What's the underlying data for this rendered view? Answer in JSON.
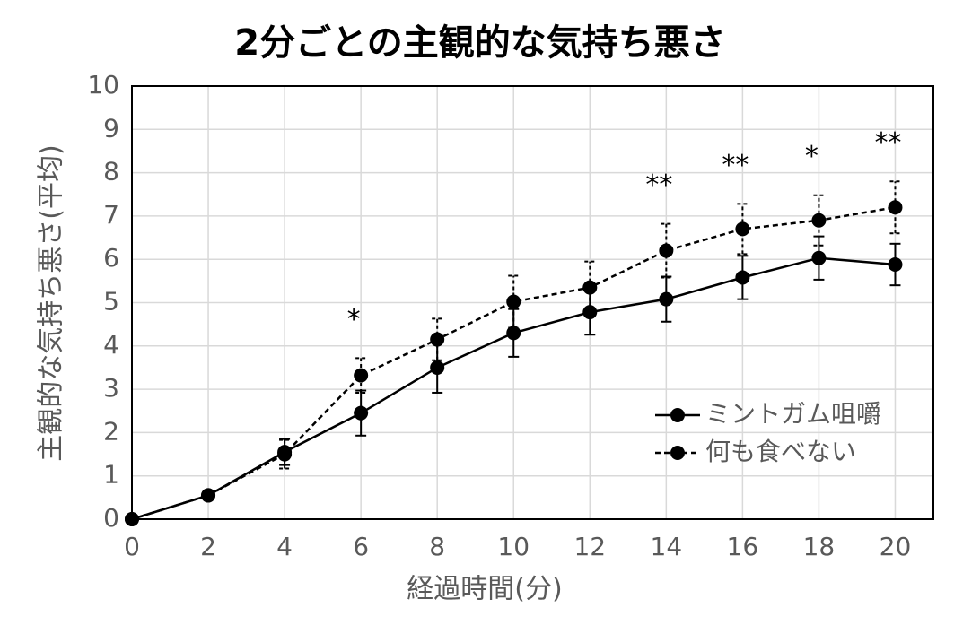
{
  "chart_data": {
    "type": "line",
    "title": "2分ごとの主観的な気持ち悪さ",
    "x_label": "経過時間(分)",
    "y_label": "主観的な気持ち悪さ(平均)",
    "x": [
      0,
      2,
      4,
      6,
      8,
      10,
      12,
      14,
      16,
      18,
      20
    ],
    "series": [
      {
        "name": "ミントガム咀嚼",
        "color": "#000000",
        "dash": false,
        "values": [
          0,
          0.55,
          1.55,
          2.45,
          3.5,
          4.3,
          4.78,
          5.08,
          5.58,
          6.03,
          5.88
        ],
        "errors": [
          0,
          0,
          0.3,
          0.52,
          0.58,
          0.55,
          0.52,
          0.52,
          0.5,
          0.5,
          0.48
        ]
      },
      {
        "name": "何も食べない",
        "color": "#000000",
        "dash": true,
        "values": [
          0,
          0.55,
          1.5,
          3.32,
          4.15,
          5.02,
          5.35,
          6.2,
          6.7,
          6.9,
          7.2
        ],
        "errors": [
          0,
          0,
          0.33,
          0.4,
          0.48,
          0.6,
          0.6,
          0.62,
          0.58,
          0.58,
          0.6
        ]
      }
    ],
    "annotations": [
      {
        "x": 6,
        "text": "*"
      },
      {
        "x": 14,
        "text": "**"
      },
      {
        "x": 16,
        "text": "**"
      },
      {
        "x": 18,
        "text": "*"
      },
      {
        "x": 20,
        "text": "**"
      }
    ],
    "xlim": [
      0,
      21
    ],
    "xticks": [
      0,
      2,
      4,
      6,
      8,
      10,
      12,
      14,
      16,
      18,
      20
    ],
    "ylim": [
      0,
      10
    ],
    "yticks": [
      0,
      1,
      2,
      3,
      4,
      5,
      6,
      7,
      8,
      9,
      10
    ],
    "grid": true,
    "legend": "lower right"
  }
}
